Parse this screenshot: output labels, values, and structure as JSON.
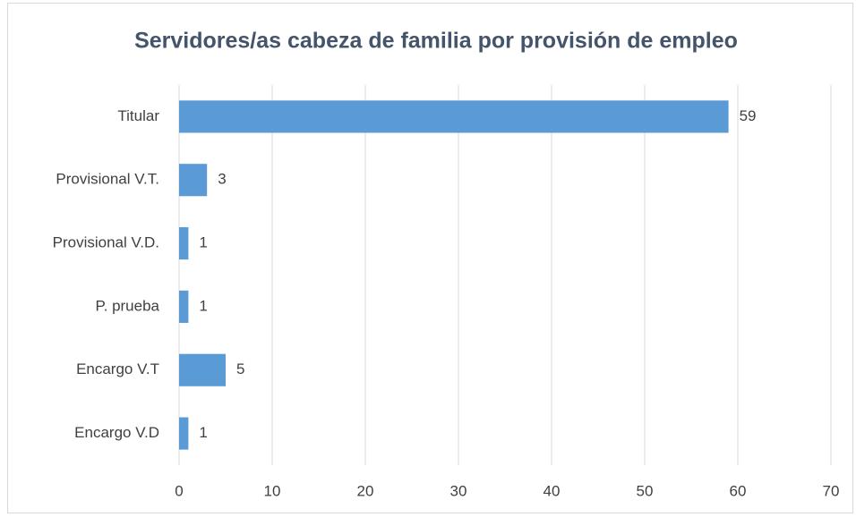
{
  "chart_data": {
    "type": "bar",
    "orientation": "horizontal",
    "title": "Servidores/as cabeza de familia por provisión de empleo",
    "categories": [
      "Titular",
      "Provisional V.T.",
      "Provisional V.D.",
      "P. prueba",
      "Encargo V.T",
      "Encargo V.D"
    ],
    "values": [
      59,
      3,
      1,
      1,
      5,
      1
    ],
    "color": "#5b9bd5",
    "xlim": [
      0,
      70
    ],
    "xticks": [
      0,
      10,
      20,
      30,
      40,
      50,
      60,
      70
    ],
    "grid": true
  }
}
